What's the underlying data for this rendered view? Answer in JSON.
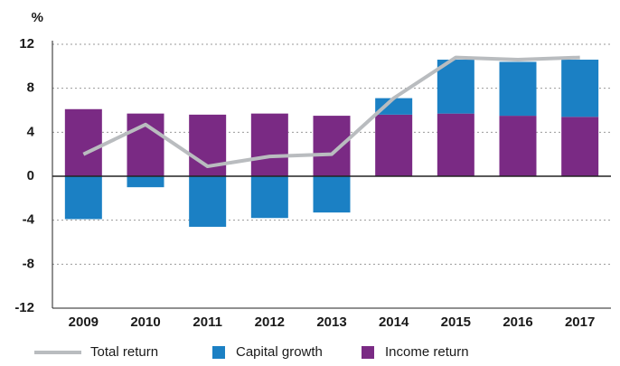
{
  "chart_data": {
    "type": "bar",
    "y_label": "%",
    "categories": [
      "2009",
      "2010",
      "2011",
      "2012",
      "2013",
      "2014",
      "2015",
      "2016",
      "2017"
    ],
    "series": [
      {
        "name": "Total return",
        "type": "line",
        "color": "#b9bcbf",
        "values": [
          2.0,
          4.7,
          0.9,
          1.8,
          2.0,
          7.1,
          10.8,
          10.6,
          10.8
        ]
      },
      {
        "name": "Capital growth",
        "type": "bar",
        "color": "#1b80c4",
        "values": [
          -3.9,
          -1.0,
          -4.6,
          -3.8,
          -3.3,
          1.5,
          4.9,
          4.9,
          5.2
        ]
      },
      {
        "name": "Income return",
        "type": "bar",
        "color": "#7a2a84",
        "values": [
          6.1,
          5.7,
          5.6,
          5.7,
          5.5,
          5.6,
          5.7,
          5.5,
          5.4
        ]
      }
    ],
    "ylim": [
      -12,
      12
    ],
    "yticks": [
      -12,
      -8,
      -4,
      0,
      4,
      8,
      12
    ],
    "grid": true
  }
}
